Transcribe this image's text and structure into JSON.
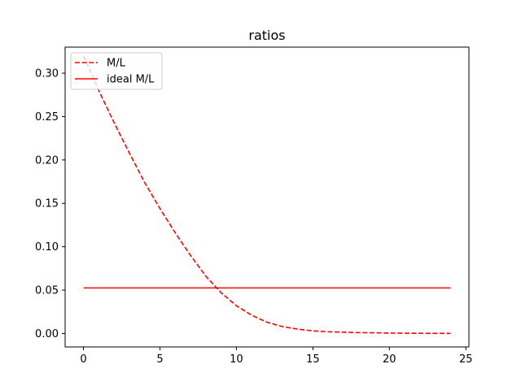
{
  "chart_data": {
    "type": "line",
    "title": "ratios",
    "xlabel": "",
    "ylabel": "",
    "xlim": [
      -1.2,
      25.2
    ],
    "ylim": [
      -0.0155,
      0.33
    ],
    "xticks": [
      0,
      5,
      10,
      15,
      20,
      25
    ],
    "yticks": [
      0.0,
      0.05,
      0.1,
      0.15,
      0.2,
      0.25,
      0.3
    ],
    "xtick_labels": [
      "0",
      "5",
      "10",
      "15",
      "20",
      "25"
    ],
    "ytick_labels": [
      "0.00",
      "0.05",
      "0.10",
      "0.15",
      "0.20",
      "0.25",
      "0.30"
    ],
    "grid": false,
    "legend_position": "top-left",
    "series": [
      {
        "name": "M/L",
        "style": "dashed",
        "color": "#ff0000",
        "x": [
          0,
          1,
          2,
          3,
          4,
          5,
          6,
          7,
          8,
          9,
          10,
          11,
          12,
          13,
          14,
          15,
          16,
          17,
          18,
          19,
          20,
          21,
          22,
          23,
          24
        ],
        "y": [
          0.32,
          0.28,
          0.243,
          0.208,
          0.174,
          0.144,
          0.116,
          0.09,
          0.066,
          0.047,
          0.032,
          0.021,
          0.013,
          0.008,
          0.005,
          0.003,
          0.002,
          0.0015,
          0.001,
          0.0008,
          0.0005,
          0.0003,
          0.0002,
          0.0001,
          0.0001
        ]
      },
      {
        "name": "ideal M/L",
        "style": "solid",
        "color": "#ff0000",
        "x": [
          0,
          24
        ],
        "y": [
          0.0525,
          0.0525
        ]
      }
    ]
  }
}
